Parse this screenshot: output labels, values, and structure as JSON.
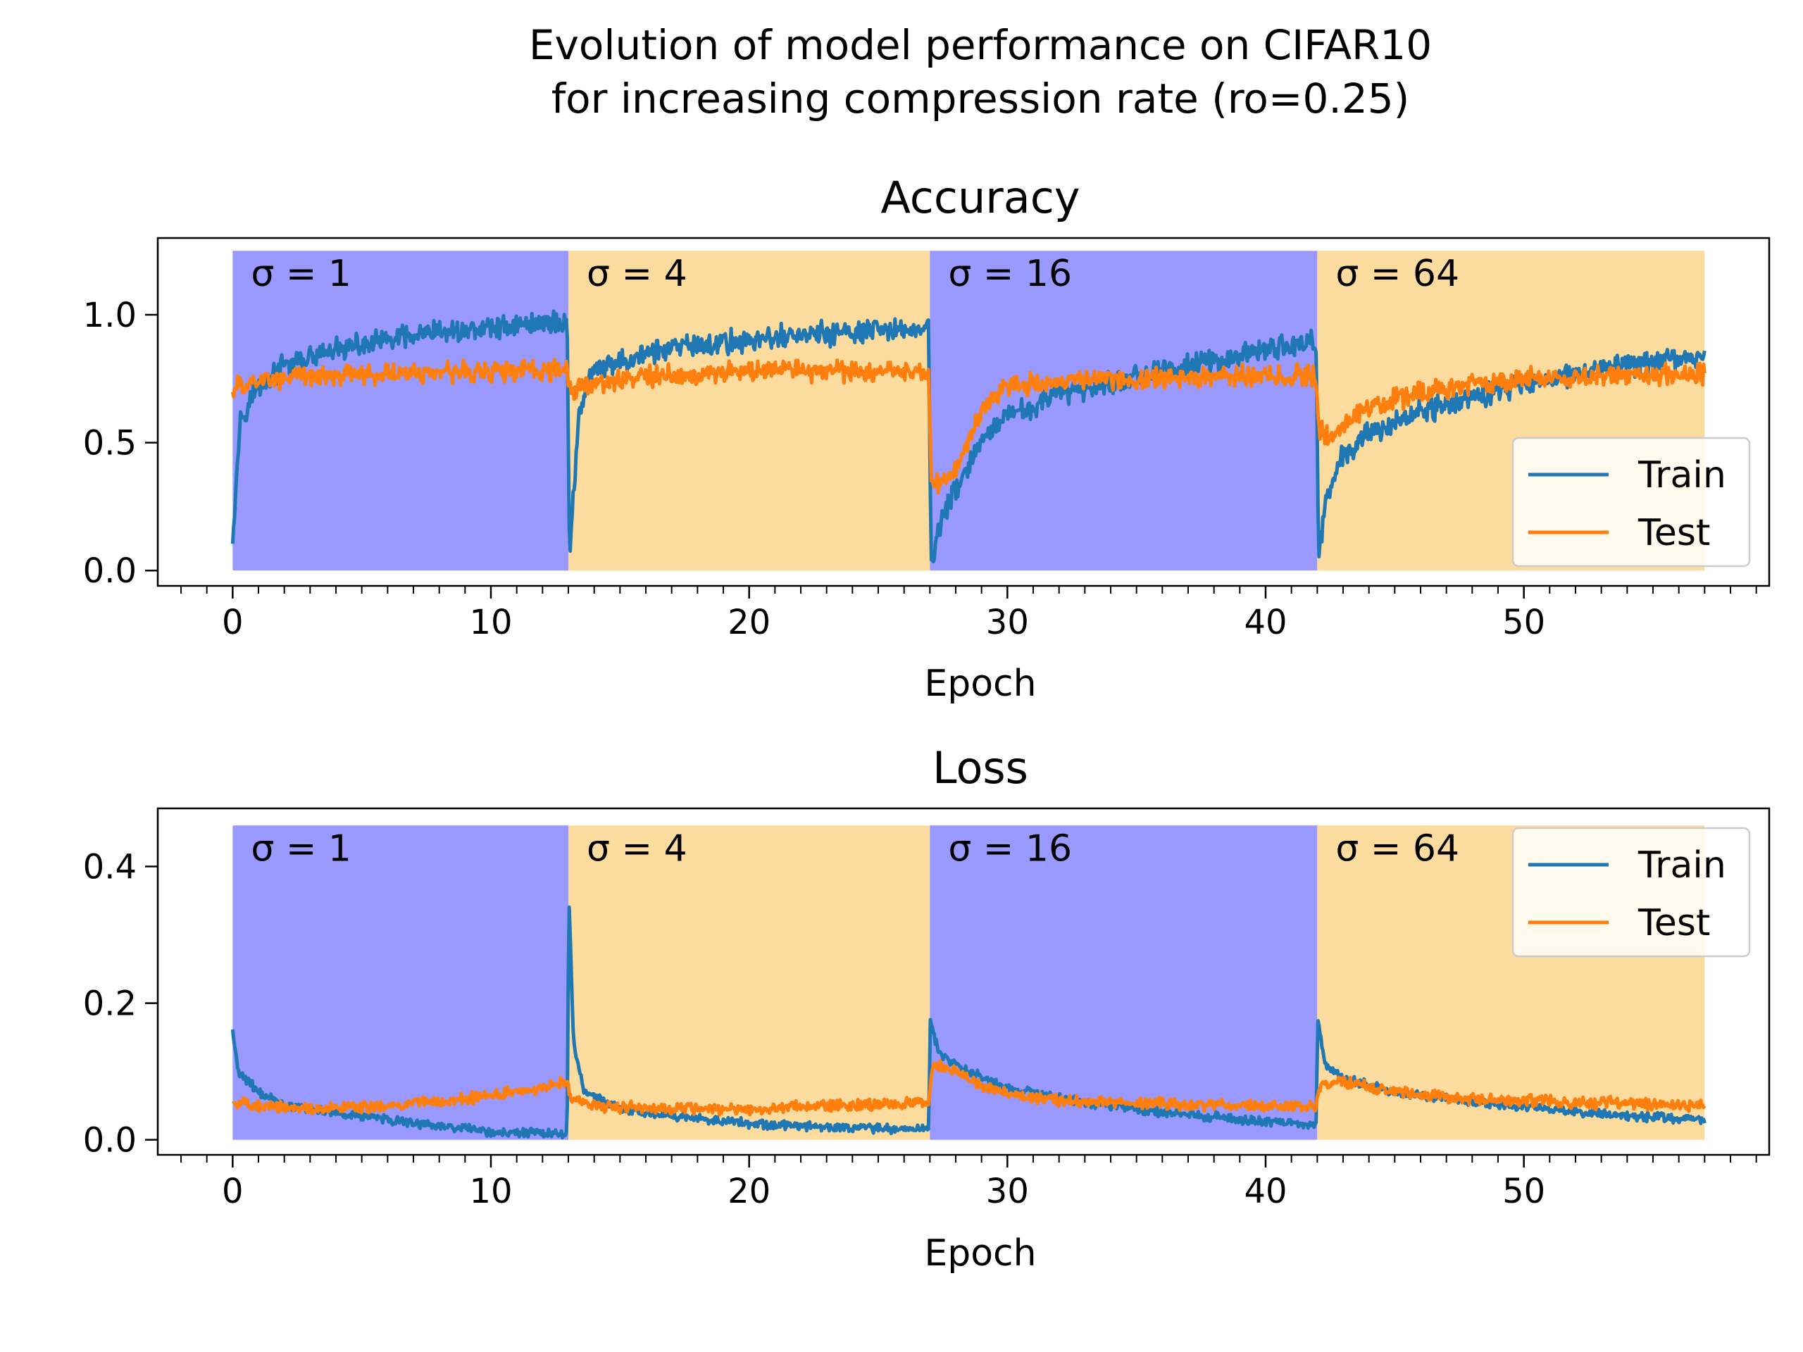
{
  "figure": {
    "title_line1": "Evolution of model performance on CIFAR10",
    "title_line2": "for increasing compression rate (ro=0.25)"
  },
  "chart_data": [
    {
      "type": "line",
      "title": "Accuracy",
      "xlabel": "Epoch",
      "ylabel": "",
      "xlim": [
        -2.9,
        59.5
      ],
      "ylim": [
        -0.06,
        1.3
      ],
      "xticks": [
        "0",
        "10",
        "20",
        "30",
        "40",
        "50"
      ],
      "xtick_values": [
        0,
        10,
        20,
        30,
        40,
        50
      ],
      "yticks": [
        "0.0",
        "0.5",
        "1.0"
      ],
      "ytick_values": [
        0.0,
        0.5,
        1.0
      ],
      "minor_xtick_step": 1,
      "legend": {
        "position": "lower-right",
        "entries": [
          "Train",
          "Test"
        ]
      },
      "regions": [
        {
          "label": "σ = 1",
          "x0": 0,
          "x1": 13,
          "y0": 0,
          "y1": 1.25,
          "color": "#9999ff"
        },
        {
          "label": "σ = 4",
          "x0": 13,
          "x1": 27,
          "y0": 0,
          "y1": 1.25,
          "color": "#fcdb9e"
        },
        {
          "label": "σ = 16",
          "x0": 27,
          "x1": 42,
          "y0": 0,
          "y1": 1.25,
          "color": "#9999ff"
        },
        {
          "label": "σ = 64",
          "x0": 42,
          "x1": 57,
          "y0": 0,
          "y1": 1.25,
          "color": "#fcdb9e"
        }
      ],
      "series": [
        {
          "name": "Train",
          "color": "#1f77b4",
          "x": [
            0,
            0.3,
            1,
            2,
            4,
            6,
            8,
            10,
            12,
            12.95,
            13.05,
            13.4,
            14,
            16,
            18,
            20,
            22,
            24,
            26,
            26.95,
            27.05,
            27.4,
            28,
            29,
            30,
            32,
            35,
            38,
            41.95,
            42.05,
            42.4,
            43,
            44,
            46,
            48,
            50,
            52,
            54,
            57
          ],
          "y": [
            0.14,
            0.6,
            0.72,
            0.8,
            0.86,
            0.9,
            0.93,
            0.95,
            0.97,
            0.97,
            0.05,
            0.62,
            0.78,
            0.85,
            0.88,
            0.9,
            0.92,
            0.93,
            0.94,
            0.95,
            0.03,
            0.18,
            0.32,
            0.5,
            0.6,
            0.69,
            0.76,
            0.82,
            0.9,
            0.08,
            0.3,
            0.45,
            0.54,
            0.62,
            0.68,
            0.73,
            0.77,
            0.8,
            0.84
          ],
          "noise": 0.055
        },
        {
          "name": "Test",
          "color": "#ff7f0e",
          "x": [
            0,
            0.3,
            1,
            3,
            6,
            9,
            12,
            12.95,
            13.05,
            13.5,
            15,
            18,
            21,
            24,
            26.95,
            27.05,
            27.5,
            28,
            29,
            30,
            33,
            36,
            39,
            41.95,
            42.05,
            42.5,
            43,
            44,
            46,
            48,
            50,
            53,
            57
          ],
          "y": [
            0.7,
            0.72,
            0.74,
            0.76,
            0.77,
            0.78,
            0.78,
            0.78,
            0.7,
            0.72,
            0.75,
            0.77,
            0.78,
            0.78,
            0.78,
            0.36,
            0.33,
            0.4,
            0.63,
            0.72,
            0.74,
            0.75,
            0.76,
            0.76,
            0.55,
            0.52,
            0.58,
            0.64,
            0.7,
            0.73,
            0.75,
            0.76,
            0.77
          ],
          "noise": 0.05
        }
      ]
    },
    {
      "type": "line",
      "title": "Loss",
      "xlabel": "Epoch",
      "ylabel": "",
      "xlim": [
        -2.9,
        59.5
      ],
      "ylim": [
        -0.022,
        0.485
      ],
      "xticks": [
        "0",
        "10",
        "20",
        "30",
        "40",
        "50"
      ],
      "xtick_values": [
        0,
        10,
        20,
        30,
        40,
        50
      ],
      "yticks": [
        "0.0",
        "0.2",
        "0.4"
      ],
      "ytick_values": [
        0.0,
        0.2,
        0.4
      ],
      "minor_xtick_step": 1,
      "legend": {
        "position": "upper-right",
        "entries": [
          "Train",
          "Test"
        ]
      },
      "regions": [
        {
          "label": "σ = 1",
          "x0": 0,
          "x1": 13,
          "y0": 0,
          "y1": 0.46,
          "color": "#9999ff"
        },
        {
          "label": "σ = 4",
          "x0": 13,
          "x1": 27,
          "y0": 0,
          "y1": 0.46,
          "color": "#fcdb9e"
        },
        {
          "label": "σ = 16",
          "x0": 27,
          "x1": 42,
          "y0": 0,
          "y1": 0.46,
          "color": "#9999ff"
        },
        {
          "label": "σ = 64",
          "x0": 42,
          "x1": 57,
          "y0": 0,
          "y1": 0.46,
          "color": "#fcdb9e"
        }
      ],
      "series": [
        {
          "name": "Train",
          "color": "#1f77b4",
          "x": [
            0,
            0.2,
            1,
            2,
            4,
            6,
            8,
            10,
            12.95,
            13.02,
            13.2,
            13.6,
            15,
            18,
            21,
            24,
            26.95,
            27.02,
            27.3,
            28,
            30,
            33,
            36,
            39,
            41.95,
            42.02,
            42.3,
            43,
            45,
            48,
            51,
            54,
            57
          ],
          "y": [
            0.16,
            0.1,
            0.07,
            0.05,
            0.04,
            0.03,
            0.02,
            0.012,
            0.008,
            0.36,
            0.14,
            0.07,
            0.045,
            0.03,
            0.022,
            0.018,
            0.015,
            0.18,
            0.13,
            0.11,
            0.075,
            0.055,
            0.04,
            0.03,
            0.022,
            0.18,
            0.11,
            0.09,
            0.07,
            0.055,
            0.045,
            0.035,
            0.03
          ],
          "noise": 0.008
        },
        {
          "name": "Test",
          "color": "#ff7f0e",
          "x": [
            0,
            1,
            3,
            6,
            9,
            12,
            12.95,
            13.1,
            14,
            17,
            20,
            23,
            26.95,
            27.1,
            28,
            29,
            31,
            34,
            38,
            41.95,
            42.1,
            43,
            45,
            48,
            52,
            57
          ],
          "y": [
            0.055,
            0.05,
            0.045,
            0.05,
            0.06,
            0.075,
            0.085,
            0.06,
            0.05,
            0.045,
            0.045,
            0.05,
            0.055,
            0.11,
            0.1,
            0.08,
            0.06,
            0.055,
            0.05,
            0.05,
            0.08,
            0.085,
            0.07,
            0.06,
            0.055,
            0.05
          ],
          "noise": 0.01
        }
      ]
    }
  ]
}
